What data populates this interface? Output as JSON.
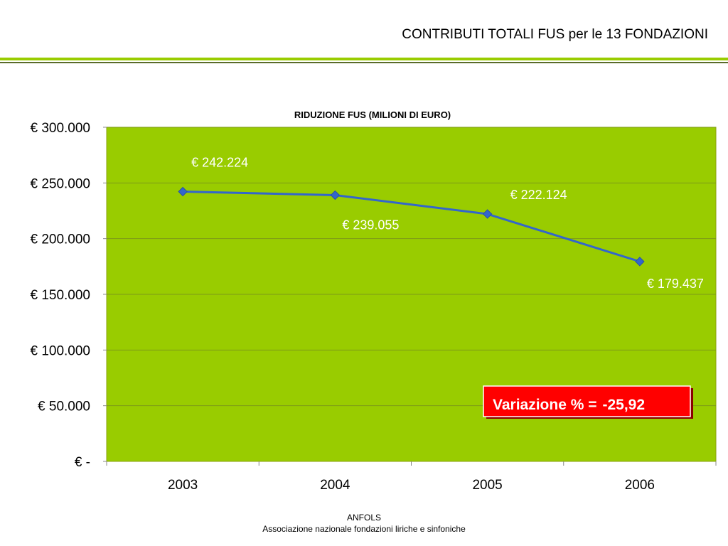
{
  "header": {
    "title": "CONTRIBUTI TOTALI FUS per le 13 FONDAZIONI"
  },
  "footer": {
    "org": "ANFOLS",
    "description": "Associazione nazionale fondazioni liriche e sinfoniche"
  },
  "colors": {
    "plot_background": "#99cc00",
    "line": "#3366cc",
    "callout_background": "#ff0000",
    "accent_rule": "#99cc00"
  },
  "chart_data": {
    "type": "line",
    "title": "RIDUZIONE FUS (MILIONI DI EURO)",
    "xlabel": "",
    "ylabel": "",
    "categories": [
      "2003",
      "2004",
      "2005",
      "2006"
    ],
    "series": [
      {
        "values": [
          242224,
          239055,
          222124,
          179437
        ],
        "data_labels": [
          "€ 242.224",
          "€ 239.055",
          "€ 222.124",
          "€ 179.437"
        ]
      }
    ],
    "ylim": [
      0,
      300000
    ],
    "yticks": [
      0,
      50000,
      100000,
      150000,
      200000,
      250000,
      300000
    ],
    "ytick_labels": [
      "€ -",
      "€ 50.000",
      "€ 100.000",
      "€ 150.000",
      "€ 200.000",
      "€ 250.000",
      "€ 300.000"
    ],
    "grid": true,
    "legend": "none",
    "annotation": {
      "label": "Variazione % =",
      "value": "-25,92"
    }
  }
}
